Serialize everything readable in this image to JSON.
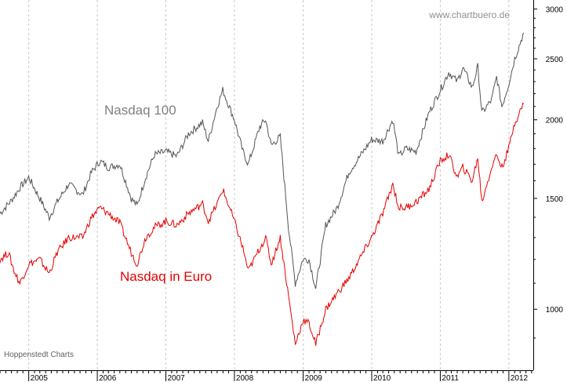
{
  "chart_data": {
    "type": "line",
    "y_scale": "log",
    "ylim": [
      800,
      3100
    ],
    "y_ticks": [
      1000,
      1500,
      2000,
      2500,
      3000
    ],
    "x_tick_labels": [
      "2005",
      "2006",
      "2007",
      "2008",
      "2009",
      "2010",
      "2011",
      "2012"
    ],
    "grid": "vertical dashed at year boundaries",
    "watermark": "www.chartbuero.de",
    "source_note": "Hoppenstedt Charts",
    "series": [
      {
        "name": "Nasdaq 100",
        "color": "#555555",
        "label_color": "#808080",
        "values": [
          [
            "2004-08-01",
            1420
          ],
          [
            "2004-10-01",
            1490
          ],
          [
            "2004-11-15",
            1560
          ],
          [
            "2005-01-01",
            1620
          ],
          [
            "2005-03-01",
            1500
          ],
          [
            "2005-04-20",
            1400
          ],
          [
            "2005-06-01",
            1480
          ],
          [
            "2005-08-01",
            1580
          ],
          [
            "2005-10-15",
            1520
          ],
          [
            "2005-12-01",
            1650
          ],
          [
            "2006-01-15",
            1720
          ],
          [
            "2006-03-01",
            1680
          ],
          [
            "2006-05-01",
            1700
          ],
          [
            "2006-07-01",
            1500
          ],
          [
            "2006-08-01",
            1460
          ],
          [
            "2006-09-15",
            1620
          ],
          [
            "2006-11-01",
            1760
          ],
          [
            "2007-01-01",
            1780
          ],
          [
            "2007-03-01",
            1750
          ],
          [
            "2007-05-01",
            1900
          ],
          [
            "2007-07-15",
            1980
          ],
          [
            "2007-08-15",
            1850
          ],
          [
            "2007-10-01",
            2100
          ],
          [
            "2007-10-31",
            2230
          ],
          [
            "2008-01-01",
            2000
          ],
          [
            "2008-02-15",
            1780
          ],
          [
            "2008-03-15",
            1700
          ],
          [
            "2008-05-15",
            1950
          ],
          [
            "2008-06-15",
            2000
          ],
          [
            "2008-07-15",
            1820
          ],
          [
            "2008-09-01",
            1880
          ],
          [
            "2008-10-15",
            1350
          ],
          [
            "2008-11-20",
            1100
          ],
          [
            "2008-12-31",
            1200
          ],
          [
            "2009-02-01",
            1200
          ],
          [
            "2009-03-09",
            1080
          ],
          [
            "2009-05-01",
            1360
          ],
          [
            "2009-07-01",
            1450
          ],
          [
            "2009-09-01",
            1650
          ],
          [
            "2009-12-31",
            1860
          ],
          [
            "2010-03-01",
            1850
          ],
          [
            "2010-04-23",
            2000
          ],
          [
            "2010-05-25",
            1750
          ],
          [
            "2010-07-01",
            1800
          ],
          [
            "2010-08-25",
            1780
          ],
          [
            "2010-11-01",
            2050
          ],
          [
            "2011-01-01",
            2230
          ],
          [
            "2011-02-15",
            2380
          ],
          [
            "2011-04-01",
            2300
          ],
          [
            "2011-05-01",
            2420
          ],
          [
            "2011-06-20",
            2250
          ],
          [
            "2011-07-20",
            2430
          ],
          [
            "2011-08-10",
            2050
          ],
          [
            "2011-10-01",
            2150
          ],
          [
            "2011-10-28",
            2340
          ],
          [
            "2011-11-25",
            2100
          ],
          [
            "2011-12-31",
            2280
          ],
          [
            "2012-02-01",
            2500
          ],
          [
            "2012-03-20",
            2750
          ]
        ]
      },
      {
        "name": "Nasdaq in Euro",
        "color": "#e60000",
        "label_color": "#e60000",
        "values": [
          [
            "2004-08-01",
            1200
          ],
          [
            "2004-09-15",
            1230
          ],
          [
            "2004-10-15",
            1150
          ],
          [
            "2004-11-15",
            1100
          ],
          [
            "2005-01-01",
            1180
          ],
          [
            "2005-03-01",
            1200
          ],
          [
            "2005-04-20",
            1140
          ],
          [
            "2005-06-01",
            1230
          ],
          [
            "2005-08-01",
            1300
          ],
          [
            "2005-10-15",
            1300
          ],
          [
            "2005-12-01",
            1400
          ],
          [
            "2006-01-15",
            1450
          ],
          [
            "2006-03-01",
            1420
          ],
          [
            "2006-05-01",
            1370
          ],
          [
            "2006-07-01",
            1230
          ],
          [
            "2006-08-01",
            1180
          ],
          [
            "2006-09-15",
            1300
          ],
          [
            "2006-11-01",
            1350
          ],
          [
            "2007-01-01",
            1380
          ],
          [
            "2007-03-01",
            1360
          ],
          [
            "2007-05-01",
            1420
          ],
          [
            "2007-07-15",
            1470
          ],
          [
            "2007-08-15",
            1380
          ],
          [
            "2007-10-01",
            1470
          ],
          [
            "2007-10-31",
            1550
          ],
          [
            "2008-01-01",
            1380
          ],
          [
            "2008-02-15",
            1250
          ],
          [
            "2008-03-15",
            1150
          ],
          [
            "2008-05-15",
            1250
          ],
          [
            "2008-06-15",
            1300
          ],
          [
            "2008-07-15",
            1180
          ],
          [
            "2008-09-01",
            1300
          ],
          [
            "2008-10-15",
            1050
          ],
          [
            "2008-11-20",
            880
          ],
          [
            "2008-12-31",
            960
          ],
          [
            "2009-02-01",
            950
          ],
          [
            "2009-03-09",
            880
          ],
          [
            "2009-05-01",
            1000
          ],
          [
            "2009-07-01",
            1060
          ],
          [
            "2009-09-01",
            1120
          ],
          [
            "2009-12-31",
            1300
          ],
          [
            "2010-03-01",
            1420
          ],
          [
            "2010-04-23",
            1580
          ],
          [
            "2010-05-25",
            1450
          ],
          [
            "2010-07-01",
            1450
          ],
          [
            "2010-08-25",
            1480
          ],
          [
            "2010-11-01",
            1550
          ],
          [
            "2011-01-01",
            1720
          ],
          [
            "2011-02-15",
            1760
          ],
          [
            "2011-04-01",
            1620
          ],
          [
            "2011-05-01",
            1680
          ],
          [
            "2011-06-20",
            1600
          ],
          [
            "2011-07-20",
            1740
          ],
          [
            "2011-08-10",
            1480
          ],
          [
            "2011-10-01",
            1680
          ],
          [
            "2011-10-28",
            1760
          ],
          [
            "2011-11-25",
            1680
          ],
          [
            "2011-12-31",
            1800
          ],
          [
            "2012-02-01",
            1980
          ],
          [
            "2012-03-20",
            2120
          ]
        ]
      }
    ]
  }
}
